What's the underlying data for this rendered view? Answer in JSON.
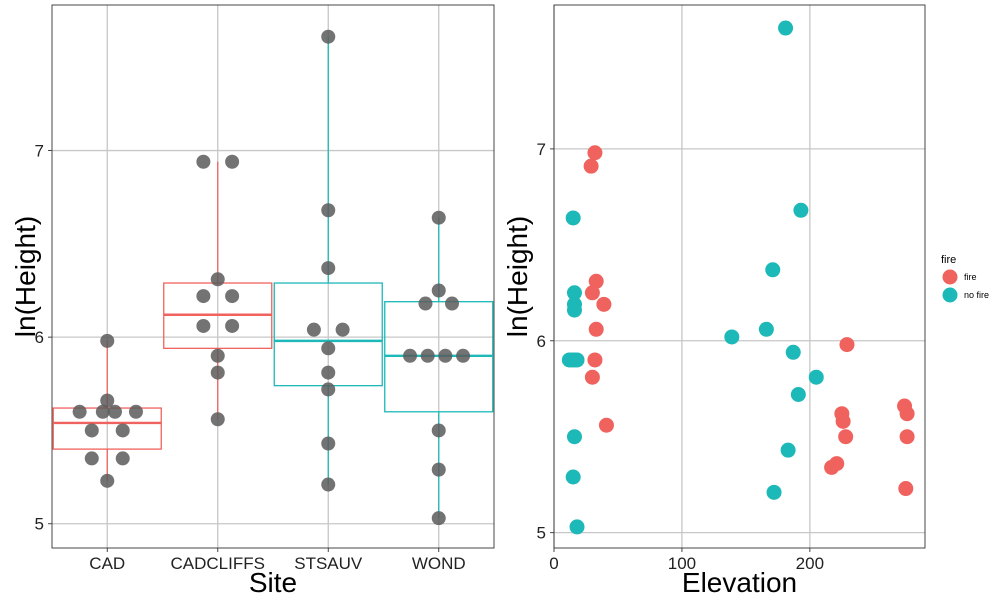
{
  "colors": {
    "fire": "#F0625D",
    "no_fire": "#1DB8B8",
    "point_gray": "#5a5a5a"
  },
  "chart_data": [
    {
      "type": "box",
      "xlabel": "Site",
      "ylabel": "ln(Height)",
      "ylim": [
        4.87,
        7.78
      ],
      "yticks": [
        5,
        6,
        7
      ],
      "categories": [
        "CAD",
        "CADCLIFFS",
        "STSAUV",
        "WOND"
      ],
      "box_colors": [
        "fire",
        "fire",
        "no_fire",
        "no_fire"
      ],
      "boxes": [
        {
          "q1": 5.4,
          "median": 5.54,
          "q3": 5.62,
          "whisker_low": 5.23,
          "whisker_high": 5.98
        },
        {
          "q1": 5.94,
          "median": 6.12,
          "q3": 6.29,
          "whisker_low": 5.56,
          "whisker_high": 6.94
        },
        {
          "q1": 5.74,
          "median": 5.98,
          "q3": 6.29,
          "whisker_low": 5.21,
          "whisker_high": 7.61
        },
        {
          "q1": 5.6,
          "median": 5.9,
          "q3": 6.19,
          "whisker_low": 5.03,
          "whisker_high": 6.64
        }
      ],
      "points": [
        [
          [
            "CAD",
            -0.25,
            5.6
          ],
          [
            "CAD",
            -0.04,
            5.6
          ],
          [
            "CAD",
            0.07,
            5.6
          ],
          [
            "CAD",
            0.26,
            5.6
          ],
          [
            "CAD",
            0.0,
            5.98
          ],
          [
            "CAD",
            0.0,
            5.66
          ],
          [
            "CAD",
            -0.14,
            5.5
          ],
          [
            "CAD",
            0.14,
            5.5
          ],
          [
            "CAD",
            -0.14,
            5.35
          ],
          [
            "CAD",
            0.14,
            5.35
          ],
          [
            "CAD",
            0.0,
            5.23
          ]
        ],
        [
          [
            "CADCLIFFS",
            -0.13,
            6.94
          ],
          [
            "CADCLIFFS",
            0.13,
            6.94
          ],
          [
            "CADCLIFFS",
            0.0,
            6.31
          ],
          [
            "CADCLIFFS",
            -0.13,
            6.22
          ],
          [
            "CADCLIFFS",
            0.13,
            6.22
          ],
          [
            "CADCLIFFS",
            -0.13,
            6.06
          ],
          [
            "CADCLIFFS",
            0.13,
            6.06
          ],
          [
            "CADCLIFFS",
            0.0,
            5.9
          ],
          [
            "CADCLIFFS",
            0.0,
            5.81
          ],
          [
            "CADCLIFFS",
            0.0,
            5.56
          ]
        ],
        [
          [
            "STSAUV",
            0.0,
            7.61
          ],
          [
            "STSAUV",
            0.0,
            6.68
          ],
          [
            "STSAUV",
            0.0,
            6.37
          ],
          [
            "STSAUV",
            -0.13,
            6.04
          ],
          [
            "STSAUV",
            0.13,
            6.04
          ],
          [
            "STSAUV",
            0.0,
            5.94
          ],
          [
            "STSAUV",
            0.0,
            5.81
          ],
          [
            "STSAUV",
            0.0,
            5.72
          ],
          [
            "STSAUV",
            0.0,
            5.43
          ],
          [
            "STSAUV",
            0.0,
            5.21
          ]
        ],
        [
          [
            "WOND",
            0.0,
            6.64
          ],
          [
            "WOND",
            0.0,
            6.25
          ],
          [
            "WOND",
            -0.12,
            6.18
          ],
          [
            "WOND",
            0.12,
            6.18
          ],
          [
            "WOND",
            -0.26,
            5.9
          ],
          [
            "WOND",
            -0.1,
            5.9
          ],
          [
            "WOND",
            0.06,
            5.9
          ],
          [
            "WOND",
            0.22,
            5.9
          ],
          [
            "WOND",
            0.0,
            5.5
          ],
          [
            "WOND",
            0.0,
            5.29
          ],
          [
            "WOND",
            0.0,
            5.03
          ]
        ]
      ]
    },
    {
      "type": "scatter",
      "xlabel": "Elevation",
      "ylabel": "ln(Height)",
      "xlim": [
        0,
        290
      ],
      "ylim": [
        4.92,
        7.75
      ],
      "xticks": [
        0,
        100,
        200
      ],
      "yticks": [
        5,
        6,
        7
      ],
      "legend": {
        "title": "fire",
        "position": "right",
        "entries": [
          {
            "label": "fire",
            "color_key": "fire"
          },
          {
            "label": "no fire",
            "color_key": "no_fire"
          }
        ]
      },
      "series": [
        {
          "name": "fire",
          "color_key": "fire",
          "points": [
            [
              32,
              6.98
            ],
            [
              29,
              6.91
            ],
            [
              33,
              6.31
            ],
            [
              30,
              6.25
            ],
            [
              39,
              6.19
            ],
            [
              33,
              6.06
            ],
            [
              32,
              5.9
            ],
            [
              30,
              5.81
            ],
            [
              41,
              5.56
            ],
            [
              229,
              5.98
            ],
            [
              225,
              5.62
            ],
            [
              226,
              5.58
            ],
            [
              228,
              5.5
            ],
            [
              221,
              5.36
            ],
            [
              217,
              5.34
            ],
            [
              274,
              5.66
            ],
            [
              276,
              5.62
            ],
            [
              276,
              5.5
            ],
            [
              275,
              5.23
            ]
          ]
        },
        {
          "name": "no fire",
          "color_key": "no_fire",
          "points": [
            [
              15,
              6.64
            ],
            [
              16,
              6.25
            ],
            [
              16,
              6.19
            ],
            [
              16,
              6.16
            ],
            [
              12,
              5.9
            ],
            [
              14,
              5.9
            ],
            [
              16,
              5.9
            ],
            [
              18,
              5.9
            ],
            [
              16,
              5.5
            ],
            [
              15,
              5.29
            ],
            [
              18,
              5.03
            ],
            [
              181,
              7.63
            ],
            [
              193,
              6.68
            ],
            [
              171,
              6.37
            ],
            [
              139,
              6.02
            ],
            [
              166,
              6.06
            ],
            [
              187,
              5.94
            ],
            [
              205,
              5.81
            ],
            [
              191,
              5.72
            ],
            [
              183,
              5.43
            ],
            [
              172,
              5.21
            ]
          ]
        }
      ]
    }
  ]
}
